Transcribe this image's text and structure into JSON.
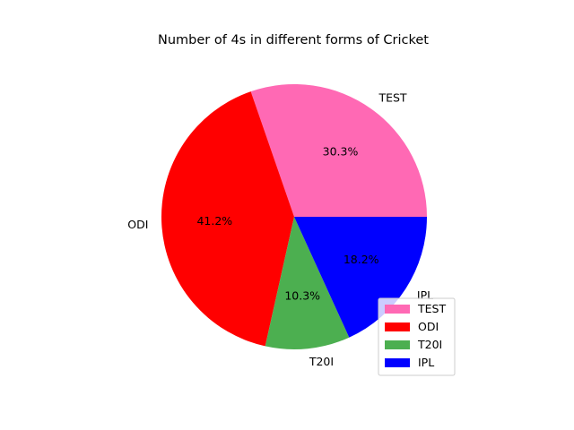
{
  "chart_data": {
    "type": "pie",
    "title": "Number of 4s in different forms of Cricket",
    "slices": [
      {
        "label": "TEST",
        "percent": 30.3,
        "percent_label": "30.3%",
        "color": "#ff69b4"
      },
      {
        "label": "ODI",
        "percent": 41.2,
        "percent_label": "41.2%",
        "color": "#ff0000"
      },
      {
        "label": "T20I",
        "percent": 10.3,
        "percent_label": "10.3%",
        "color": "#4caf50"
      },
      {
        "label": "IPL",
        "percent": 18.2,
        "percent_label": "18.2%",
        "color": "#0000ff"
      }
    ],
    "start_angle_deg": 0,
    "direction": "counterclockwise",
    "legend": {
      "placement": "lower-right",
      "entries": [
        "TEST",
        "ODI",
        "T20I",
        "IPL"
      ]
    }
  }
}
